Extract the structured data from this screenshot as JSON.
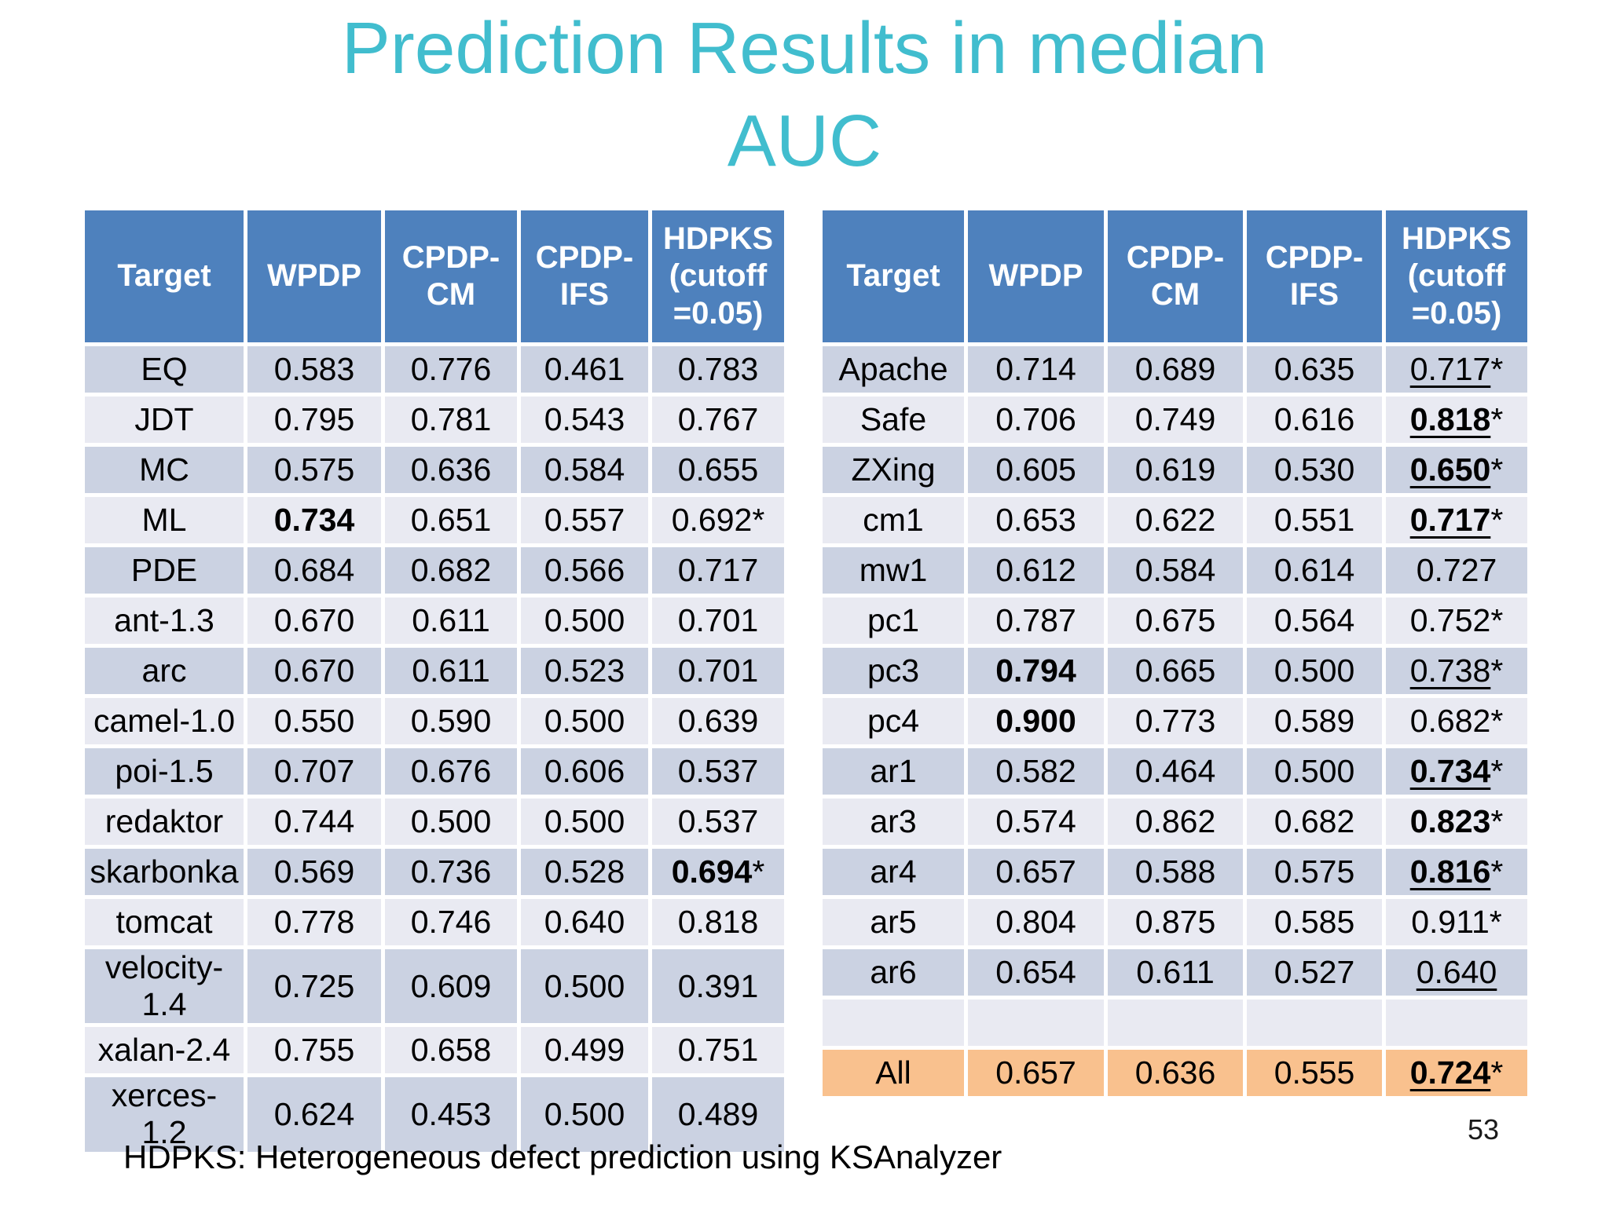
{
  "slide": {
    "title": "Prediction Results in median AUC",
    "footnote": "HDPKS: Heterogeneous defect prediction using KSAnalyzer",
    "page_number": "53"
  },
  "colors": {
    "title_text": "#41BDCE",
    "header_bg": "#4E81BD",
    "header_text": "#FFFFFF",
    "row_dark": "#CBD2E2",
    "row_light": "#E9EAF2",
    "all_row_bg": "#F9C18E"
  },
  "columns": [
    "Target",
    "WPDP",
    "CPDP-CM",
    "CPDP-IFS",
    "HDPKS (cutoff =0.05)"
  ],
  "left_table": {
    "rows": [
      {
        "target": "EQ",
        "values": [
          {
            "v": "0.583"
          },
          {
            "v": "0.776"
          },
          {
            "v": "0.461"
          },
          {
            "v": "0.783"
          }
        ]
      },
      {
        "target": "JDT",
        "values": [
          {
            "v": "0.795"
          },
          {
            "v": "0.781"
          },
          {
            "v": "0.543"
          },
          {
            "v": "0.767"
          }
        ]
      },
      {
        "target": "MC",
        "values": [
          {
            "v": "0.575"
          },
          {
            "v": "0.636"
          },
          {
            "v": "0.584"
          },
          {
            "v": "0.655"
          }
        ]
      },
      {
        "target": "ML",
        "values": [
          {
            "v": "0.734",
            "bold": true
          },
          {
            "v": "0.651"
          },
          {
            "v": "0.557"
          },
          {
            "v": "0.692",
            "star": true
          }
        ]
      },
      {
        "target": "PDE",
        "values": [
          {
            "v": "0.684"
          },
          {
            "v": "0.682"
          },
          {
            "v": "0.566"
          },
          {
            "v": "0.717"
          }
        ]
      },
      {
        "target": "ant-1.3",
        "values": [
          {
            "v": "0.670"
          },
          {
            "v": "0.611"
          },
          {
            "v": "0.500"
          },
          {
            "v": "0.701"
          }
        ]
      },
      {
        "target": "arc",
        "values": [
          {
            "v": "0.670"
          },
          {
            "v": "0.611"
          },
          {
            "v": "0.523"
          },
          {
            "v": "0.701"
          }
        ]
      },
      {
        "target": "camel-1.0",
        "values": [
          {
            "v": "0.550"
          },
          {
            "v": "0.590"
          },
          {
            "v": "0.500"
          },
          {
            "v": "0.639"
          }
        ]
      },
      {
        "target": "poi-1.5",
        "values": [
          {
            "v": "0.707"
          },
          {
            "v": "0.676"
          },
          {
            "v": "0.606"
          },
          {
            "v": "0.537"
          }
        ]
      },
      {
        "target": "redaktor",
        "values": [
          {
            "v": "0.744"
          },
          {
            "v": "0.500"
          },
          {
            "v": "0.500"
          },
          {
            "v": "0.537"
          }
        ]
      },
      {
        "target": "skarbonka",
        "values": [
          {
            "v": "0.569"
          },
          {
            "v": "0.736"
          },
          {
            "v": "0.528"
          },
          {
            "v": "0.694",
            "bold": true,
            "star": true
          }
        ]
      },
      {
        "target": "tomcat",
        "values": [
          {
            "v": "0.778"
          },
          {
            "v": "0.746"
          },
          {
            "v": "0.640"
          },
          {
            "v": "0.818"
          }
        ]
      },
      {
        "target": "velocity-1.4",
        "values": [
          {
            "v": "0.725"
          },
          {
            "v": "0.609"
          },
          {
            "v": "0.500"
          },
          {
            "v": "0.391"
          }
        ]
      },
      {
        "target": "xalan-2.4",
        "values": [
          {
            "v": "0.755"
          },
          {
            "v": "0.658"
          },
          {
            "v": "0.499"
          },
          {
            "v": "0.751"
          }
        ]
      },
      {
        "target": "xerces-1.2",
        "values": [
          {
            "v": "0.624"
          },
          {
            "v": "0.453"
          },
          {
            "v": "0.500"
          },
          {
            "v": "0.489"
          }
        ]
      }
    ]
  },
  "right_table": {
    "rows": [
      {
        "target": "Apache",
        "values": [
          {
            "v": "0.714"
          },
          {
            "v": "0.689"
          },
          {
            "v": "0.635"
          },
          {
            "v": "0.717",
            "underline": true,
            "star": true
          }
        ]
      },
      {
        "target": "Safe",
        "values": [
          {
            "v": "0.706"
          },
          {
            "v": "0.749"
          },
          {
            "v": "0.616"
          },
          {
            "v": "0.818",
            "bold": true,
            "underline": true,
            "star": true
          }
        ]
      },
      {
        "target": "ZXing",
        "values": [
          {
            "v": "0.605"
          },
          {
            "v": "0.619"
          },
          {
            "v": "0.530"
          },
          {
            "v": "0.650",
            "bold": true,
            "underline": true,
            "star": true
          }
        ]
      },
      {
        "target": "cm1",
        "values": [
          {
            "v": "0.653"
          },
          {
            "v": "0.622"
          },
          {
            "v": "0.551"
          },
          {
            "v": "0.717",
            "bold": true,
            "underline": true,
            "star": true
          }
        ]
      },
      {
        "target": "mw1",
        "values": [
          {
            "v": "0.612"
          },
          {
            "v": "0.584"
          },
          {
            "v": "0.614"
          },
          {
            "v": "0.727"
          }
        ]
      },
      {
        "target": "pc1",
        "values": [
          {
            "v": "0.787"
          },
          {
            "v": "0.675"
          },
          {
            "v": "0.564"
          },
          {
            "v": "0.752",
            "star": true
          }
        ]
      },
      {
        "target": "pc3",
        "values": [
          {
            "v": "0.794",
            "bold": true
          },
          {
            "v": "0.665"
          },
          {
            "v": "0.500"
          },
          {
            "v": "0.738",
            "underline": true,
            "star": true
          }
        ]
      },
      {
        "target": "pc4",
        "values": [
          {
            "v": "0.900",
            "bold": true
          },
          {
            "v": "0.773"
          },
          {
            "v": "0.589"
          },
          {
            "v": "0.682",
            "star": true
          }
        ]
      },
      {
        "target": "ar1",
        "values": [
          {
            "v": "0.582"
          },
          {
            "v": "0.464"
          },
          {
            "v": "0.500"
          },
          {
            "v": "0.734",
            "bold": true,
            "underline": true,
            "star": true
          }
        ]
      },
      {
        "target": "ar3",
        "values": [
          {
            "v": "0.574"
          },
          {
            "v": "0.862"
          },
          {
            "v": "0.682"
          },
          {
            "v": "0.823",
            "bold": true,
            "star": true
          }
        ]
      },
      {
        "target": "ar4",
        "values": [
          {
            "v": "0.657"
          },
          {
            "v": "0.588"
          },
          {
            "v": "0.575"
          },
          {
            "v": "0.816",
            "bold": true,
            "underline": true,
            "star": true
          }
        ]
      },
      {
        "target": "ar5",
        "values": [
          {
            "v": "0.804"
          },
          {
            "v": "0.875"
          },
          {
            "v": "0.585"
          },
          {
            "v": "0.911",
            "star": true
          }
        ]
      },
      {
        "target": "ar6",
        "values": [
          {
            "v": "0.654"
          },
          {
            "v": "0.611"
          },
          {
            "v": "0.527"
          },
          {
            "v": "0.640",
            "underline": true
          }
        ]
      },
      {
        "target": "",
        "values": [
          {
            "v": ""
          },
          {
            "v": ""
          },
          {
            "v": ""
          },
          {
            "v": ""
          }
        ]
      },
      {
        "target": "All",
        "highlight": true,
        "values": [
          {
            "v": "0.657"
          },
          {
            "v": "0.636"
          },
          {
            "v": "0.555"
          },
          {
            "v": "0.724",
            "bold": true,
            "underline": true,
            "star": true
          }
        ]
      }
    ]
  }
}
